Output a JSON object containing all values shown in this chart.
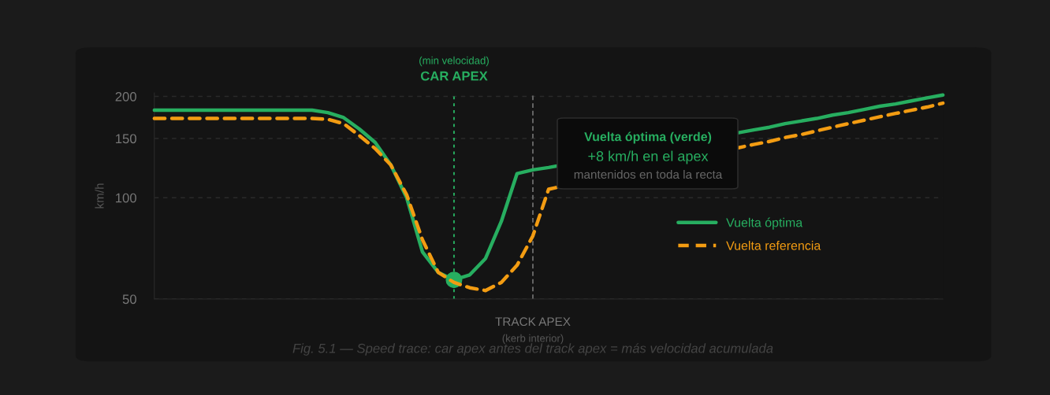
{
  "chart_data": {
    "type": "line",
    "categories": [
      null,
      null,
      null,
      null,
      null,
      null,
      null,
      null,
      null,
      null,
      null,
      null,
      null,
      null,
      null,
      null,
      null,
      null,
      null,
      null,
      null,
      null,
      null,
      null,
      null,
      null,
      null,
      null,
      null,
      null,
      null,
      null,
      null,
      null,
      null,
      null,
      null,
      null,
      null,
      null,
      null,
      null,
      null,
      null,
      null,
      null,
      null,
      null,
      null,
      null,
      null
    ],
    "series": [
      {
        "name": "Vuelta óptima",
        "color": "#27ae60",
        "line_style": "solid",
        "values": [
          182,
          182,
          182,
          182,
          182,
          182,
          182,
          182,
          182,
          182,
          182,
          179,
          173,
          160,
          146,
          125,
          100,
          69,
          60,
          57,
          59,
          66,
          85,
          118,
          121,
          123,
          null,
          null,
          null,
          null,
          null,
          null,
          null,
          null,
          null,
          null,
          null,
          null,
          159,
          162,
          166,
          169,
          172,
          176,
          179,
          183,
          187,
          190,
          194,
          198,
          202
        ]
      },
      {
        "name": "Vuelta referencia",
        "color": "#f39c12",
        "line_style": "dashed",
        "values": [
          172,
          172,
          172,
          172,
          172,
          172,
          172,
          172,
          172,
          172,
          172,
          171,
          166,
          153,
          140,
          125,
          102,
          75,
          60,
          56,
          54,
          53,
          56,
          63,
          77,
          106,
          null,
          null,
          null,
          null,
          null,
          null,
          null,
          null,
          null,
          null,
          null,
          null,
          144,
          147,
          151,
          154,
          158,
          162,
          166,
          170,
          174,
          178,
          182,
          186,
          191
        ]
      },
      {
        "type": "scatter",
        "color": "#27ae60",
        "marker": "circle",
        "values": [
          null,
          null,
          null,
          null,
          null,
          null,
          null,
          null,
          null,
          null,
          null,
          null,
          null,
          null,
          null,
          null,
          null,
          null,
          null,
          57,
          null,
          null,
          null,
          null,
          null,
          null,
          null,
          null,
          null,
          null,
          null,
          null,
          null,
          null,
          null,
          null,
          null,
          null,
          null,
          null,
          null,
          null,
          null,
          null,
          null,
          null,
          null,
          null,
          null,
          null,
          null
        ]
      }
    ],
    "ylabel": "km/h",
    "log": "y",
    "ylim": [
      50,
      205
    ],
    "yticks": [
      50,
      100,
      150,
      200
    ],
    "tick_labels": "y",
    "grid": "y",
    "legend": "right",
    "annotations": [
      "(min velocidad)",
      "CAR APEX",
      "TRACK APEX",
      "(kerb interior)",
      "Vuelta óptima (verde)",
      "+8 km/h en el apex",
      "mantenidos en toda la recta",
      "Fig. 5.1 — Speed trace: car apex antes del track apex = más velocidad acumulada"
    ]
  }
}
